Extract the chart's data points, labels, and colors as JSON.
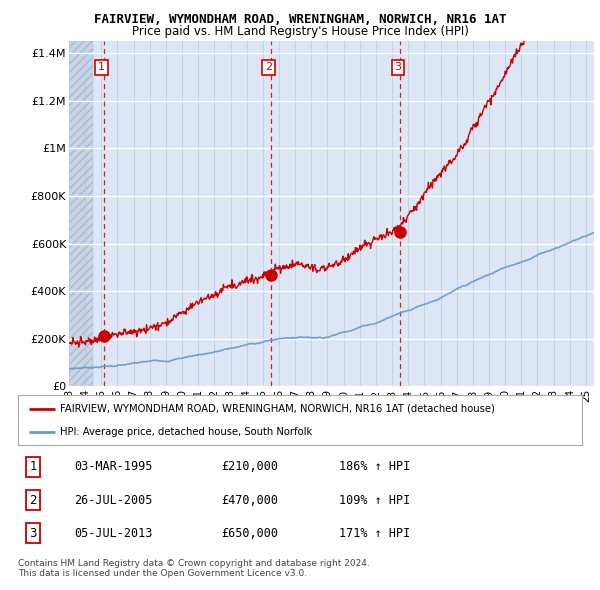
{
  "title1": "FAIRVIEW, WYMONDHAM ROAD, WRENINGHAM, NORWICH, NR16 1AT",
  "title2": "Price paid vs. HM Land Registry's House Price Index (HPI)",
  "ylabel_ticks": [
    "£0",
    "£200K",
    "£400K",
    "£600K",
    "£800K",
    "£1M",
    "£1.2M",
    "£1.4M"
  ],
  "ytick_values": [
    0,
    200000,
    400000,
    600000,
    800000,
    1000000,
    1200000,
    1400000
  ],
  "ylim": [
    0,
    1450000
  ],
  "xlim": [
    1993.0,
    2025.5
  ],
  "sales": [
    {
      "date": 1995.17,
      "price": 210000,
      "label": "1"
    },
    {
      "date": 2005.51,
      "price": 470000,
      "label": "2"
    },
    {
      "date": 2013.51,
      "price": 650000,
      "label": "3"
    }
  ],
  "legend_line1": "FAIRVIEW, WYMONDHAM ROAD, WRENINGHAM, NORWICH, NR16 1AT (detached house)",
  "legend_line2": "HPI: Average price, detached house, South Norfolk",
  "table_rows": [
    {
      "num": "1",
      "date": "03-MAR-1995",
      "price": "£210,000",
      "hpi": "186% ↑ HPI"
    },
    {
      "num": "2",
      "date": "26-JUL-2005",
      "price": "£470,000",
      "hpi": "109% ↑ HPI"
    },
    {
      "num": "3",
      "date": "05-JUL-2013",
      "price": "£650,000",
      "hpi": "171% ↑ HPI"
    }
  ],
  "footnote1": "Contains HM Land Registry data © Crown copyright and database right 2024.",
  "footnote2": "This data is licensed under the Open Government Licence v3.0.",
  "property_color": "#cc0000",
  "hpi_color": "#6699cc",
  "background_color": "#dce6f5",
  "hatch_bg_color": "#c8d4e8",
  "grid_color": "#b8c8dc"
}
